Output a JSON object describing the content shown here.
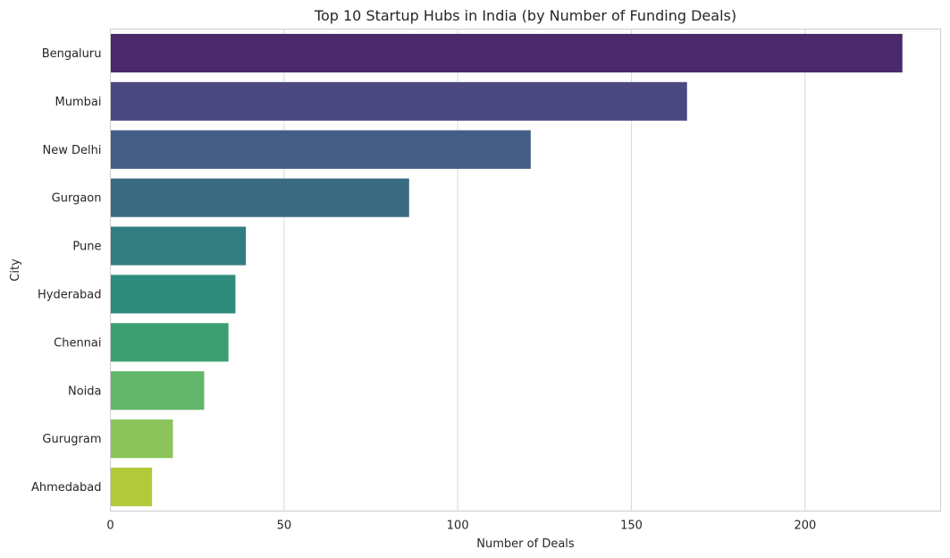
{
  "chart_data": {
    "type": "bar",
    "orientation": "horizontal",
    "title": "Top 10 Startup Hubs in India (by Number of Funding Deals)",
    "xlabel": "Number of Deals",
    "ylabel": "City",
    "categories": [
      "Bengaluru",
      "Mumbai",
      "New Delhi",
      "Gurgaon",
      "Pune",
      "Hyderabad",
      "Chennai",
      "Noida",
      "Gurugram",
      "Ahmedabad"
    ],
    "values": [
      228,
      166,
      121,
      86,
      39,
      36,
      34,
      27,
      18,
      12
    ],
    "colors": [
      "#4a2a6a",
      "#4b4882",
      "#435d85",
      "#3a6b80",
      "#327d7f",
      "#2e8c7c",
      "#3e9e73",
      "#62b66a",
      "#8bc45a",
      "#b2c93a"
    ],
    "xlim": [
      0,
      239
    ],
    "xticks": [
      0,
      50,
      100,
      150,
      200
    ],
    "grid": "vertical",
    "legend": "none"
  }
}
